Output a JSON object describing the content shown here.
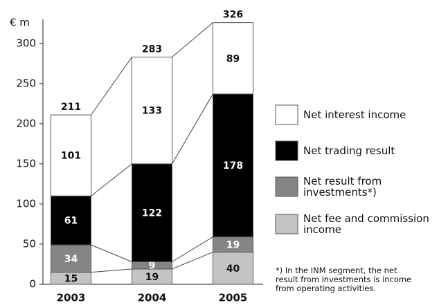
{
  "chart_data": {
    "type": "stacked_bar",
    "y_unit_label": "€ m",
    "categories": [
      "2003",
      "2004",
      "2005"
    ],
    "series": [
      {
        "name": "Net fee and commission\nincome",
        "color": "#c4c4c4",
        "values": [
          15,
          19,
          40
        ]
      },
      {
        "name": "Net result from\ninvestments*)",
        "color": "#858585",
        "values": [
          34,
          9,
          19
        ]
      },
      {
        "name": "Net trading result",
        "color": "#000000",
        "values": [
          61,
          122,
          178
        ]
      },
      {
        "name": "Net interest income",
        "color": "#ffffff",
        "values": [
          101,
          133,
          89
        ]
      }
    ],
    "totals": [
      211,
      283,
      326
    ],
    "ylim": [
      0,
      330
    ],
    "yticks": [
      0,
      50,
      100,
      150,
      200,
      250,
      300
    ],
    "footnote": "*) In the INM segment, the net\nresult from investments is income\nfrom operating activities."
  }
}
